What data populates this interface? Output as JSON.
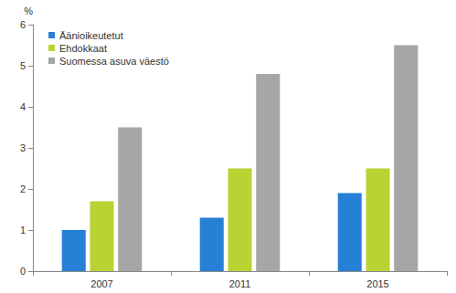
{
  "chart_data": {
    "type": "bar",
    "y_label": "%",
    "categories": [
      "2007",
      "2011",
      "2015"
    ],
    "series": [
      {
        "name": "Äänioikeutetut",
        "color": "#2680d6",
        "values": [
          1.0,
          1.3,
          1.9
        ]
      },
      {
        "name": "Ehdokkaat",
        "color": "#b7d433",
        "values": [
          1.7,
          2.5,
          2.5
        ]
      },
      {
        "name": "Suomessa asuva väestö",
        "color": "#a6a6a6",
        "values": [
          3.5,
          4.8,
          5.5
        ]
      }
    ],
    "ylim": [
      0,
      6
    ],
    "yticks": [
      0,
      1,
      2,
      3,
      4,
      5,
      6
    ],
    "grid": false,
    "legend": "upper left"
  }
}
